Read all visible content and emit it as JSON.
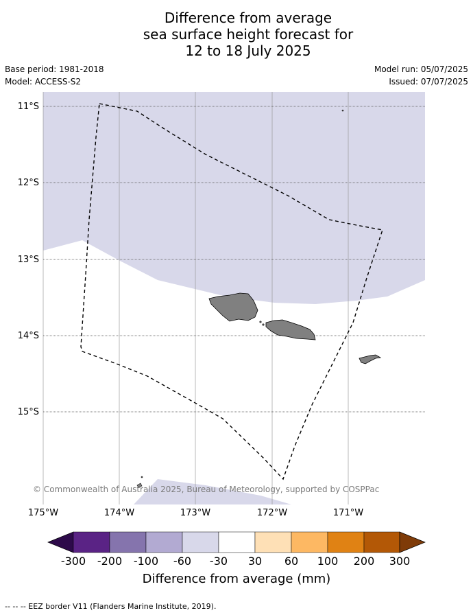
{
  "title": {
    "line1": "Difference from average",
    "line2": "sea surface height forecast for",
    "line3": "12 to 18 July 2025"
  },
  "meta": {
    "base_period": "Base period: 1981-2018",
    "model": "Model: ACCESS-S2",
    "model_run": "Model run: 05/07/2025",
    "issued": "Issued: 07/07/2025"
  },
  "map": {
    "latitude_ticks": [
      "11°S",
      "12°S",
      "13°S",
      "14°S",
      "15°S"
    ],
    "longitude_ticks": [
      "175°W",
      "174°W",
      "173°W",
      "172°W",
      "171°W"
    ],
    "extent": {
      "lon_min": -175,
      "lon_max": -170,
      "lat_min": -16.4,
      "lat_max": -10.8
    },
    "copyright": "© Commonwealth of Australia 2025, Bureau of Meteorology, supported by COSPPac",
    "colors": {
      "neg_30_60": "#d8d8ea",
      "land": "#808080"
    }
  },
  "colorbar": {
    "title": "Difference from average (mm)",
    "labels": [
      "-300",
      "-200",
      "-100",
      "-60",
      "-30",
      "30",
      "60",
      "100",
      "200",
      "300"
    ],
    "colors": [
      "#2d0a4a",
      "#5a2385",
      "#8574ad",
      "#b2aad2",
      "#d8d8ea",
      "#ffffff",
      "#fee0b6",
      "#fdb863",
      "#e08214",
      "#b35806",
      "#7f3b08"
    ]
  },
  "footer": "--  --  -- EEZ border V11 (Flanders Marine Institute, 2019)."
}
